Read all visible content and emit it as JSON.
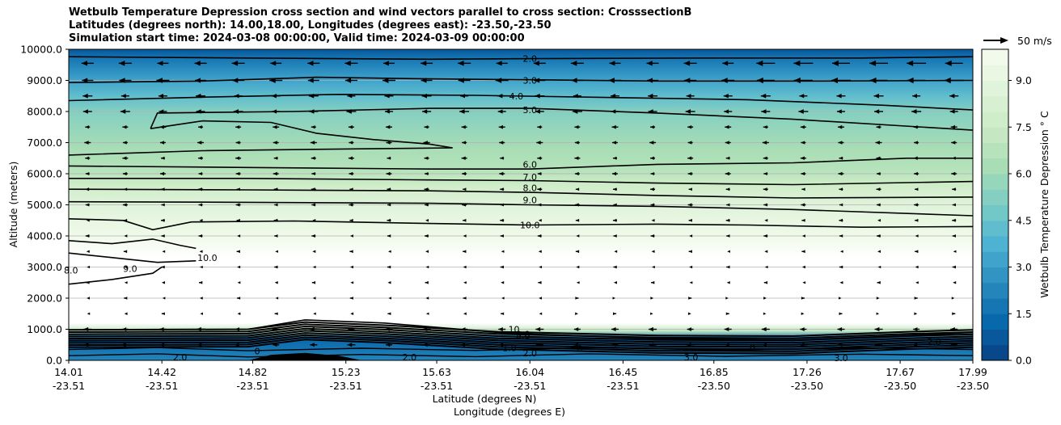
{
  "chart_data": {
    "type": "heatmap",
    "title_lines": [
      "Wetbulb Temperature Depression cross section and wind vectors parallel to cross section: CrosssectionB",
      "Latitudes (degrees north): 14.00,18.00, Longitudes (degrees east): -23.50,-23.50",
      "Simulation start time: 2024-03-08 00:00:00, Valid time: 2024-03-09 00:00:00"
    ],
    "ylabel": "Altitude (meters)",
    "xlabel_lat": "Latitude (degrees N)",
    "xlabel_lon": "Longitude (degrees E)",
    "ylim": [
      0,
      10000
    ],
    "y_ticks": [
      "0.0",
      "1000.0",
      "2000.0",
      "3000.0",
      "4000.0",
      "5000.0",
      "6000.0",
      "7000.0",
      "8000.0",
      "9000.0",
      "10000.0"
    ],
    "y_tick_values": [
      0,
      1000,
      2000,
      3000,
      4000,
      5000,
      6000,
      7000,
      8000,
      9000,
      10000
    ],
    "xlim": [
      14.01,
      17.99
    ],
    "x_tick_lat": [
      "14.01",
      "14.42",
      "14.82",
      "15.23",
      "15.63",
      "16.04",
      "16.45",
      "16.85",
      "17.26",
      "17.67",
      "17.99"
    ],
    "x_tick_lon": [
      "-23.51",
      "-23.51",
      "-23.51",
      "-23.51",
      "-23.51",
      "-23.51",
      "-23.51",
      "-23.50",
      "-23.50",
      "-23.50",
      "-23.50"
    ],
    "x_tick_values": [
      14.01,
      14.42,
      14.82,
      15.23,
      15.63,
      16.04,
      16.45,
      16.85,
      17.26,
      17.67,
      17.99
    ],
    "colorbar": {
      "label": "Wetbulb Temperature Depression ° C",
      "range": [
        0,
        10
      ],
      "ticks": [
        "0.0",
        "1.5",
        "3.0",
        "4.5",
        "6.0",
        "7.5",
        "9.0"
      ],
      "tick_values": [
        0,
        1.5,
        3.0,
        4.5,
        6.0,
        7.5,
        9.0
      ],
      "colormap": "GnBu_r",
      "levels": 20
    },
    "grid": true,
    "wind_key": "50 m/s",
    "contour_labels": [
      {
        "text": "2.0",
        "x": 16.04,
        "y": 9700
      },
      {
        "text": "3.0",
        "x": 16.04,
        "y": 9000
      },
      {
        "text": "4.0",
        "x": 15.98,
        "y": 8500
      },
      {
        "text": "5.0",
        "x": 16.04,
        "y": 8050
      },
      {
        "text": "6.0",
        "x": 16.04,
        "y": 6300
      },
      {
        "text": "7.0",
        "x": 16.04,
        "y": 5900
      },
      {
        "text": "8.0",
        "x": 16.04,
        "y": 5550
      },
      {
        "text": "9.0",
        "x": 16.04,
        "y": 5150
      },
      {
        "text": "10.0",
        "x": 16.04,
        "y": 4350
      },
      {
        "text": "10.0",
        "x": 14.62,
        "y": 3300
      },
      {
        "text": "9.0",
        "x": 14.28,
        "y": 2950
      },
      {
        "text": "8.0",
        "x": 14.02,
        "y": 2900
      },
      {
        "text": "10",
        "x": 15.97,
        "y": 1000
      },
      {
        "text": "9.0",
        "x": 16.01,
        "y": 850
      },
      {
        "text": "8.0",
        "x": 16.01,
        "y": 800
      },
      {
        "text": "1.0",
        "x": 15.95,
        "y": 400
      },
      {
        "text": "2.0",
        "x": 16.04,
        "y": 230
      },
      {
        "text": "2.0",
        "x": 14.5,
        "y": 100
      },
      {
        "text": "0",
        "x": 14.84,
        "y": 300
      },
      {
        "text": "2.0",
        "x": 15.51,
        "y": 100
      },
      {
        "text": "0",
        "x": 16.26,
        "y": 380
      },
      {
        "text": "3.0",
        "x": 16.75,
        "y": 100
      },
      {
        "text": "0",
        "x": 17.02,
        "y": 400
      },
      {
        "text": "3.0",
        "x": 17.41,
        "y": 80
      },
      {
        "text": "2.0",
        "x": 17.82,
        "y": 600
      }
    ],
    "contour_lines": [
      {
        "level": 2,
        "points": [
          [
            14.01,
            9760
          ],
          [
            14.8,
            9720
          ],
          [
            15.6,
            9680
          ],
          [
            16.04,
            9700
          ],
          [
            16.8,
            9720
          ],
          [
            17.5,
            9720
          ],
          [
            17.99,
            9760
          ]
        ]
      },
      {
        "level": 3,
        "points": [
          [
            14.01,
            8930
          ],
          [
            14.6,
            8980
          ],
          [
            15.1,
            9100
          ],
          [
            15.6,
            9050
          ],
          [
            16.04,
            9020
          ],
          [
            16.6,
            8980
          ],
          [
            17.3,
            8980
          ],
          [
            17.99,
            9000
          ]
        ]
      },
      {
        "level": 4,
        "points": [
          [
            14.01,
            8350
          ],
          [
            14.6,
            8460
          ],
          [
            15.2,
            8550
          ],
          [
            15.8,
            8520
          ],
          [
            16.4,
            8450
          ],
          [
            17.0,
            8380
          ],
          [
            17.6,
            8200
          ],
          [
            17.99,
            8050
          ]
        ]
      },
      {
        "level": 5,
        "points": [
          [
            14.37,
            7450
          ],
          [
            14.4,
            7950
          ],
          [
            15.0,
            8000
          ],
          [
            15.6,
            8100
          ],
          [
            16.04,
            8100
          ],
          [
            16.6,
            7950
          ],
          [
            17.2,
            7750
          ],
          [
            17.99,
            7400
          ]
        ]
      },
      {
        "level": 5.5,
        "points": [
          [
            14.37,
            7450
          ],
          [
            14.6,
            7700
          ],
          [
            14.9,
            7650
          ],
          [
            15.1,
            7300
          ],
          [
            15.35,
            7100
          ],
          [
            15.6,
            6950
          ],
          [
            15.7,
            6830
          ],
          [
            15.3,
            6800
          ],
          [
            14.6,
            6740
          ],
          [
            14.01,
            6600
          ]
        ]
      },
      {
        "level": 6,
        "points": [
          [
            14.01,
            6250
          ],
          [
            14.8,
            6200
          ],
          [
            15.6,
            6150
          ],
          [
            16.04,
            6150
          ],
          [
            16.6,
            6300
          ],
          [
            17.2,
            6350
          ],
          [
            17.7,
            6500
          ],
          [
            17.99,
            6500
          ]
        ]
      },
      {
        "level": 7,
        "points": [
          [
            14.01,
            5850
          ],
          [
            14.8,
            5850
          ],
          [
            15.6,
            5800
          ],
          [
            16.04,
            5780
          ],
          [
            16.6,
            5700
          ],
          [
            17.2,
            5650
          ],
          [
            17.99,
            5750
          ]
        ]
      },
      {
        "level": 8,
        "points": [
          [
            14.01,
            5500
          ],
          [
            14.8,
            5480
          ],
          [
            15.6,
            5450
          ],
          [
            16.04,
            5400
          ],
          [
            16.6,
            5300
          ],
          [
            17.2,
            5220
          ],
          [
            17.99,
            5250
          ]
        ]
      },
      {
        "level": 9,
        "points": [
          [
            14.01,
            5100
          ],
          [
            14.8,
            5080
          ],
          [
            15.6,
            5050
          ],
          [
            16.04,
            5000
          ],
          [
            16.6,
            4950
          ],
          [
            17.2,
            4850
          ],
          [
            17.99,
            4650
          ]
        ]
      },
      {
        "level": 10,
        "points": [
          [
            14.01,
            4550
          ],
          [
            14.25,
            4500
          ],
          [
            14.38,
            4200
          ],
          [
            14.55,
            4450
          ],
          [
            15.0,
            4480
          ],
          [
            15.6,
            4400
          ],
          [
            16.04,
            4350
          ],
          [
            16.6,
            4380
          ],
          [
            17.0,
            4350
          ],
          [
            17.5,
            4280
          ],
          [
            17.99,
            4300
          ]
        ]
      },
      {
        "level": 10.5,
        "points": [
          [
            14.01,
            3850
          ],
          [
            14.2,
            3750
          ],
          [
            14.38,
            3900
          ],
          [
            14.5,
            3700
          ],
          [
            14.57,
            3600
          ]
        ]
      },
      {
        "level": 11,
        "points": [
          [
            14.01,
            3450
          ],
          [
            14.4,
            3150
          ],
          [
            14.57,
            3200
          ]
        ]
      },
      {
        "level": 9.5,
        "points": [
          [
            14.01,
            2450
          ],
          [
            14.2,
            2600
          ],
          [
            14.38,
            2800
          ],
          [
            14.42,
            3000
          ]
        ]
      },
      {
        "level": 9.8,
        "points": [
          [
            14.8,
            1000
          ],
          [
            15.05,
            1300
          ],
          [
            15.4,
            1200
          ],
          [
            15.9,
            900
          ],
          [
            16.04,
            850
          ],
          [
            16.6,
            700
          ],
          [
            17.2,
            650
          ],
          [
            17.7,
            800
          ],
          [
            17.99,
            900
          ]
        ]
      }
    ],
    "field_bands": [
      {
        "y": 10000,
        "value": 0.6
      },
      {
        "y": 9700,
        "value": 1.8
      },
      {
        "y": 9000,
        "value": 3.0
      },
      {
        "y": 8500,
        "value": 4.0
      },
      {
        "y": 8000,
        "value": 5.0
      },
      {
        "y": 7400,
        "value": 5.6
      },
      {
        "y": 6800,
        "value": 6.2
      },
      {
        "y": 6100,
        "value": 6.8
      },
      {
        "y": 5600,
        "value": 7.6
      },
      {
        "y": 5000,
        "value": 8.6
      },
      {
        "y": 4400,
        "value": 9.4
      },
      {
        "y": 3900,
        "value": 9.8
      },
      {
        "y": 3300,
        "value": 10.4
      },
      {
        "y": 1200,
        "value": 10.4
      },
      {
        "y": 950,
        "value": 7.0
      },
      {
        "y": 700,
        "value": 1.2
      },
      {
        "y": 350,
        "value": 1.8
      },
      {
        "y": 0,
        "value": 2.2
      }
    ]
  }
}
